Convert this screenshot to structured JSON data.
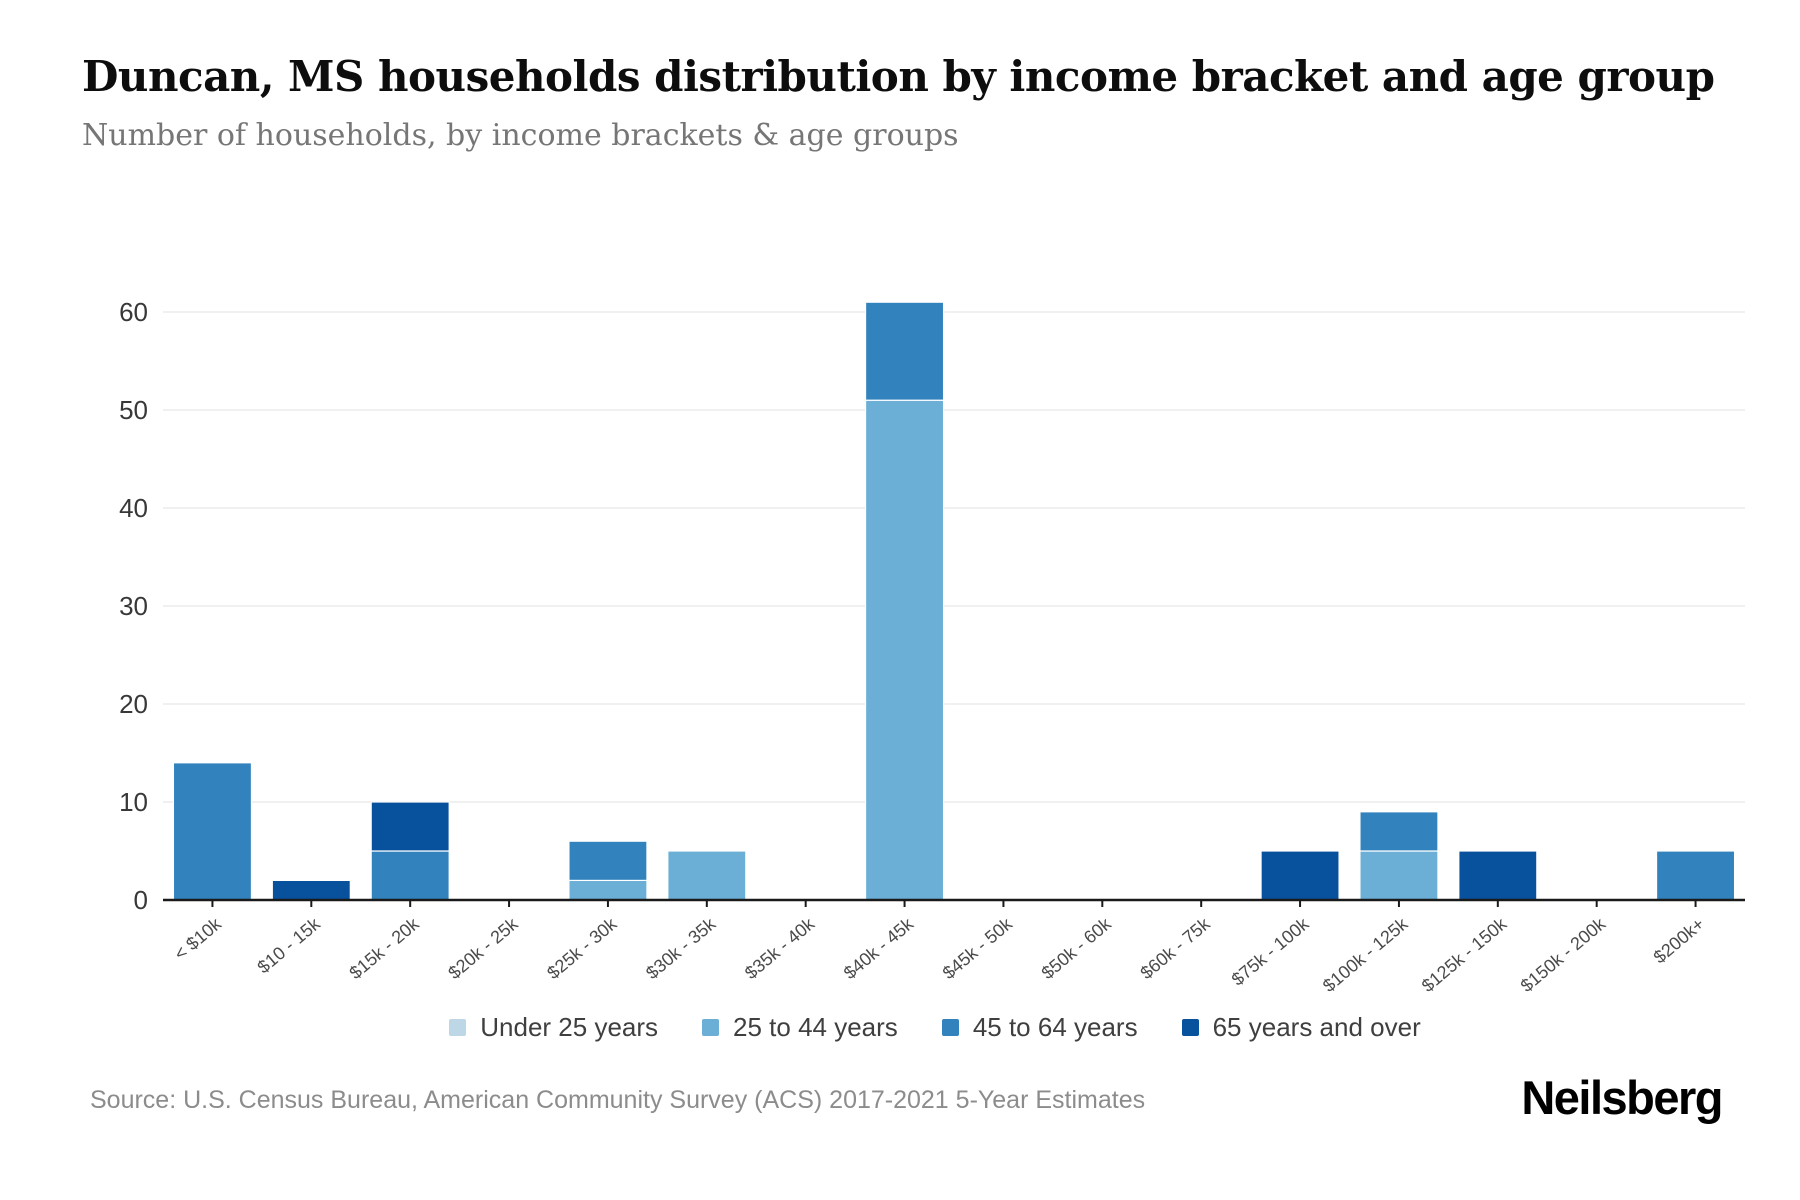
{
  "page": {
    "title": "Duncan, MS households distribution by income bracket and age group",
    "subtitle": "Number of households, by income brackets & age groups",
    "source": "Source: U.S. Census Bureau, American Community Survey (ACS) 2017-2021 5-Year Estimates",
    "brand": "Neilsberg"
  },
  "chart_data": {
    "type": "bar",
    "stacked": true,
    "title": "Duncan, MS households distribution by income bracket and age group",
    "subtitle": "Number of households, by income brackets & age groups",
    "xlabel": "",
    "ylabel": "",
    "ylim": [
      0,
      64
    ],
    "yticks": [
      0,
      10,
      20,
      30,
      40,
      50,
      60
    ],
    "grid": "horizontal",
    "legend_position": "bottom",
    "categories": [
      "< $10k",
      "$10 - 15k",
      "$15k - 20k",
      "$20k - 25k",
      "$25k - 30k",
      "$30k - 35k",
      "$35k - 40k",
      "$40k - 45k",
      "$45k - 50k",
      "$50k - 60k",
      "$60k - 75k",
      "$75k - 100k",
      "$100k - 125k",
      "$125k - 150k",
      "$150k - 200k",
      "$200k+"
    ],
    "series": [
      {
        "name": "Under 25 years",
        "color": "#bdd7e7",
        "values": [
          0,
          0,
          0,
          0,
          0,
          0,
          0,
          0,
          0,
          0,
          0,
          0,
          0,
          0,
          0,
          0
        ]
      },
      {
        "name": "25 to 44 years",
        "color": "#6baed6",
        "values": [
          0,
          0,
          0,
          0,
          2,
          5,
          0,
          51,
          0,
          0,
          0,
          0,
          5,
          0,
          0,
          0
        ]
      },
      {
        "name": "45 to 64 years",
        "color": "#3182bd",
        "values": [
          14,
          0,
          5,
          0,
          4,
          0,
          0,
          10,
          0,
          0,
          0,
          0,
          4,
          0,
          0,
          5
        ]
      },
      {
        "name": "65 years and over",
        "color": "#08519c",
        "values": [
          0,
          2,
          5,
          0,
          0,
          0,
          0,
          0,
          0,
          0,
          0,
          5,
          0,
          5,
          0,
          0
        ]
      }
    ],
    "totals": [
      14,
      2,
      10,
      0,
      6,
      5,
      0,
      61,
      0,
      0,
      0,
      5,
      9,
      5,
      0,
      5
    ]
  },
  "colors": {
    "axis": "#1a1a1a",
    "gridline": "#f0f0f0",
    "ytick_text": "#383838",
    "xtick_text": "#4a4a4a"
  }
}
